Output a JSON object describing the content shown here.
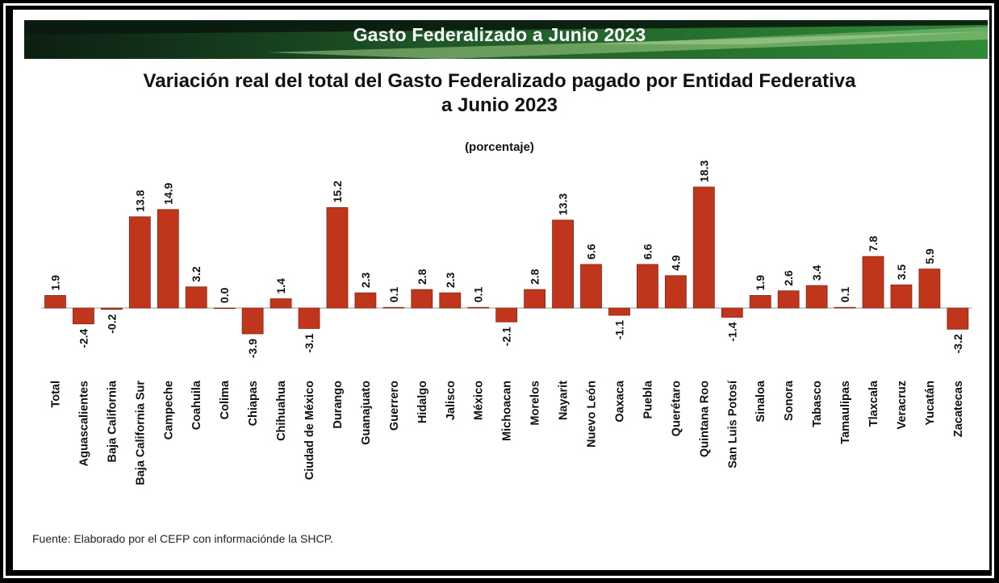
{
  "banner": {
    "title": "Gasto Federalizado a Junio 2023"
  },
  "chart_data": {
    "type": "bar",
    "title": "Variación real del total del Gasto Federalizado pagado por Entidad Federativa a Junio 2023",
    "title_lines": [
      "Variación real del total del Gasto Federalizado pagado por Entidad Federativa",
      "a Junio 2023"
    ],
    "subtitle": "(porcentaje)",
    "xlabel": "",
    "ylabel": "",
    "grid": false,
    "bar_color": "#c0361c",
    "categories": [
      "Total",
      "Aguascalientes",
      "Baja California",
      "Baja California Sur",
      "Campeche",
      "Coahuila",
      "Colima",
      "Chiapas",
      "Chihuahua",
      "Ciudad de México",
      "Durango",
      "Guanajuato",
      "Guerrero",
      "Hidalgo",
      "Jalisco",
      "México",
      "Michoacan",
      "Morelos",
      "Nayarit",
      "Nuevo León",
      "Oaxaca",
      "Puebla",
      "Querétaro",
      "Quintana Roo",
      "San Luis Potosí",
      "Sinaloa",
      "Sonora",
      "Tabasco",
      "Tamaulipas",
      "Tlaxcala",
      "Veracruz",
      "Yucatán",
      "Zacatecas"
    ],
    "values": [
      1.9,
      -2.4,
      -0.2,
      13.8,
      14.9,
      3.2,
      0.0,
      -3.9,
      1.4,
      -3.1,
      15.2,
      2.3,
      0.1,
      2.8,
      2.3,
      0.1,
      -2.1,
      2.8,
      13.3,
      6.6,
      -1.1,
      6.6,
      4.9,
      18.3,
      -1.4,
      1.9,
      2.6,
      3.4,
      0.1,
      7.8,
      3.5,
      5.9,
      -3.2
    ],
    "labels": [
      "1.9",
      "-2.4",
      "-0.2",
      "13.8",
      "14.9",
      "3.2",
      "0.0",
      "-3.9",
      "1.4",
      "-3.1",
      "15.2",
      "2.3",
      "0.1",
      "2.8",
      "2.3",
      "0.1",
      "-2.1",
      "2.8",
      "13.3",
      "6.6",
      "-1.1",
      "6.6",
      "4.9",
      "18.3",
      "-1.4",
      "1.9",
      "2.6",
      "3.4",
      "0.1",
      "7.8",
      "3.5",
      "5.9",
      "-3.2"
    ],
    "ylim": [
      -4,
      19
    ]
  },
  "source": "Fuente: Elaborado por el CEFP con informaciónde la SHCP.",
  "colors": {
    "banner_dark": "#0f2416",
    "banner_green": "#2e7a33",
    "banner_light": "#8fc47a",
    "bar": "#c0361c",
    "bar_edge": "#8a2410"
  }
}
